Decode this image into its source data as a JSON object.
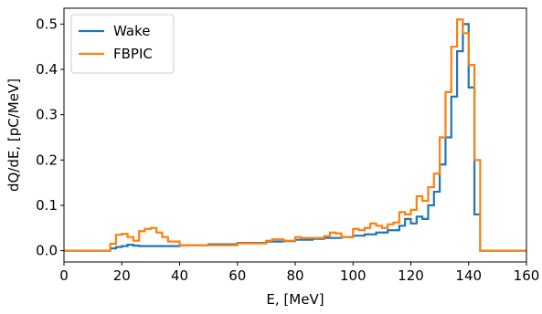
{
  "chart_data": {
    "type": "line",
    "style": "step",
    "title": "",
    "xlabel": "E, [MeV]",
    "ylabel": "dQ/dE, [pC/MeV]",
    "xlim": [
      0,
      160
    ],
    "ylim": [
      -0.025,
      0.535
    ],
    "xticks": [
      0,
      20,
      40,
      60,
      80,
      100,
      120,
      140,
      160
    ],
    "yticks": [
      0.0,
      0.1,
      0.2,
      0.3,
      0.4,
      0.5
    ],
    "xtick_labels": [
      "0",
      "20",
      "40",
      "60",
      "80",
      "100",
      "120",
      "140",
      "160"
    ],
    "ytick_labels": [
      "0.0",
      "0.1",
      "0.2",
      "0.3",
      "0.4",
      "0.5"
    ],
    "grid": false,
    "legend_position": "top-left",
    "series": [
      {
        "name": "Wake",
        "color": "#1f77b4",
        "x": [
          0,
          16,
          18,
          20,
          22,
          24,
          26,
          28,
          30,
          40,
          50,
          60,
          70,
          76,
          80,
          86,
          90,
          96,
          100,
          104,
          108,
          112,
          116,
          118,
          120,
          122,
          124,
          126,
          128,
          130,
          132,
          134,
          136,
          138,
          140,
          142,
          144,
          146,
          160
        ],
        "y": [
          0.0,
          0.005,
          0.008,
          0.01,
          0.013,
          0.011,
          0.01,
          0.01,
          0.01,
          0.012,
          0.014,
          0.017,
          0.02,
          0.021,
          0.024,
          0.026,
          0.028,
          0.03,
          0.033,
          0.036,
          0.04,
          0.045,
          0.055,
          0.07,
          0.06,
          0.075,
          0.07,
          0.1,
          0.13,
          0.19,
          0.25,
          0.34,
          0.44,
          0.5,
          0.36,
          0.08,
          0.0,
          0.0,
          0.0
        ]
      },
      {
        "name": "FBPIC",
        "color": "#ff7f0e",
        "x": [
          0,
          16,
          18,
          20,
          22,
          24,
          26,
          28,
          30,
          32,
          34,
          36,
          40,
          60,
          70,
          72,
          76,
          80,
          82,
          86,
          90,
          92,
          94,
          96,
          100,
          102,
          104,
          106,
          108,
          110,
          112,
          114,
          116,
          118,
          120,
          122,
          124,
          126,
          128,
          130,
          132,
          134,
          136,
          138,
          140,
          142,
          144,
          146,
          160
        ],
        "y": [
          0.0,
          0.015,
          0.035,
          0.037,
          0.03,
          0.022,
          0.043,
          0.048,
          0.05,
          0.04,
          0.03,
          0.02,
          0.012,
          0.016,
          0.022,
          0.025,
          0.022,
          0.03,
          0.028,
          0.028,
          0.032,
          0.04,
          0.038,
          0.03,
          0.048,
          0.045,
          0.05,
          0.06,
          0.055,
          0.05,
          0.058,
          0.062,
          0.085,
          0.08,
          0.09,
          0.12,
          0.11,
          0.14,
          0.17,
          0.25,
          0.35,
          0.45,
          0.51,
          0.48,
          0.41,
          0.2,
          0.0,
          0.0,
          0.0
        ]
      }
    ]
  }
}
